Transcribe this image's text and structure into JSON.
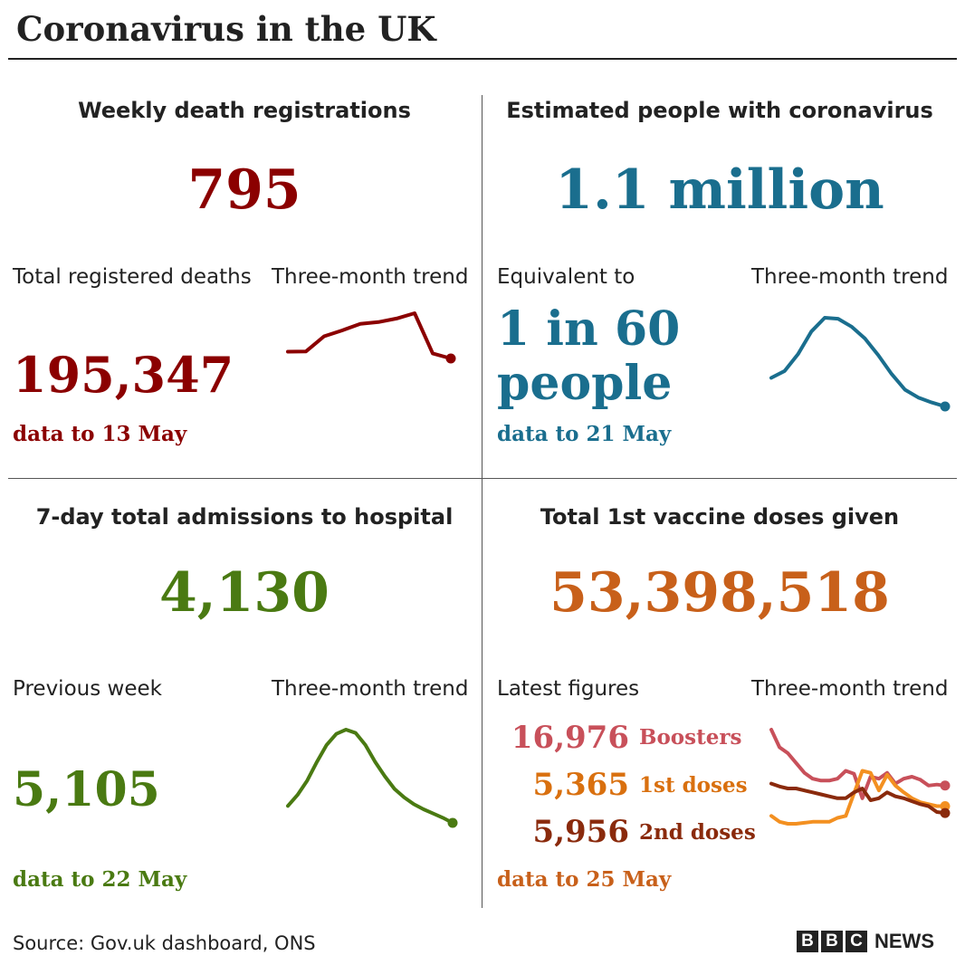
{
  "header": {
    "title": "Coronavirus in the UK"
  },
  "panels": {
    "deaths": {
      "title": "Weekly death registrations",
      "headline": "795",
      "sub_label": "Total registered deaths",
      "trend_label": "Three-month trend",
      "sub_value": "195,347",
      "date": "data to 13 May",
      "color": "#8b0000"
    },
    "infections": {
      "title": "Estimated people with coronavirus",
      "headline": "1.1 million",
      "sub_label": "Equivalent to",
      "trend_label": "Three-month trend",
      "sub_value_line1": "1 in 60",
      "sub_value_line2": "people",
      "date": "data to 21 May",
      "color": "#1a6e8e"
    },
    "admissions": {
      "title": "7-day total admissions to hospital",
      "headline": "4,130",
      "sub_label": "Previous week",
      "trend_label": "Three-month trend",
      "sub_value": "5,105",
      "date": "data to 22 May",
      "color": "#4a7a12"
    },
    "vaccines": {
      "title": "Total 1st vaccine doses given",
      "headline": "53,398,518",
      "sub_label": "Latest figures",
      "trend_label": "Three-month trend",
      "date": "data to 25 May",
      "color": "#c8601a",
      "figures": [
        {
          "value": "16,976",
          "label": "Boosters",
          "color": "#c8505a"
        },
        {
          "value": "5,365",
          "label": "1st doses",
          "color": "#d9700f"
        },
        {
          "value": "5,956",
          "label": "2nd doses",
          "color": "#8a2a0c"
        }
      ]
    }
  },
  "footer": {
    "source": "Source: Gov.uk dashboard, ONS",
    "logo_letters": [
      "B",
      "B",
      "C"
    ],
    "logo_word": "NEWS"
  },
  "chart_data": [
    {
      "type": "line",
      "name": "deaths-trend",
      "x": [
        1,
        2,
        3,
        4,
        5,
        6,
        7,
        8,
        9,
        10
      ],
      "values": [
        196,
        197,
        248,
        268,
        290,
        296,
        308,
        326,
        190,
        173
      ],
      "color": "#8b0000"
    },
    {
      "type": "line",
      "name": "infections-trend",
      "x": [
        1,
        2,
        3,
        4,
        5,
        6,
        7,
        8,
        9,
        10,
        11,
        12,
        13,
        14
      ],
      "values": [
        0.41,
        0.48,
        0.65,
        0.88,
        1.02,
        1.01,
        0.93,
        0.81,
        0.64,
        0.45,
        0.29,
        0.21,
        0.16,
        0.12
      ],
      "color": "#1a6e8e"
    },
    {
      "type": "line",
      "name": "admissions-trend",
      "x": [
        1,
        2,
        3,
        4,
        5,
        6,
        7,
        8,
        9,
        10,
        11,
        12,
        13,
        14,
        15,
        16,
        17,
        18
      ],
      "values": [
        20,
        33,
        50,
        72,
        92,
        105,
        110,
        106,
        92,
        72,
        55,
        40,
        30,
        22,
        16,
        11,
        6,
        0
      ],
      "color": "#4a7a12"
    },
    {
      "type": "line",
      "name": "vaccines-trend",
      "x": [
        1,
        2,
        3,
        4,
        5,
        6,
        7,
        8,
        9,
        10,
        11,
        12,
        13,
        14,
        15,
        16,
        17,
        18,
        19,
        20,
        21,
        22
      ],
      "series": [
        {
          "values": [
            100,
            82,
            76,
            66,
            56,
            50,
            48,
            48,
            50,
            58,
            55,
            30,
            52,
            50,
            56,
            45,
            50,
            52,
            49,
            43,
            44,
            43
          ],
          "color": "#c8505a"
        },
        {
          "values": [
            12,
            6,
            4,
            4,
            5,
            6,
            6,
            6,
            10,
            12,
            35,
            58,
            56,
            38,
            54,
            43,
            36,
            30,
            26,
            24,
            22,
            22
          ],
          "color": "#f39021"
        },
        {
          "values": [
            45,
            42,
            40,
            40,
            38,
            36,
            34,
            32,
            30,
            30,
            36,
            40,
            28,
            30,
            36,
            32,
            30,
            27,
            24,
            22,
            16,
            15
          ],
          "color": "#8a2a0c"
        }
      ]
    }
  ]
}
